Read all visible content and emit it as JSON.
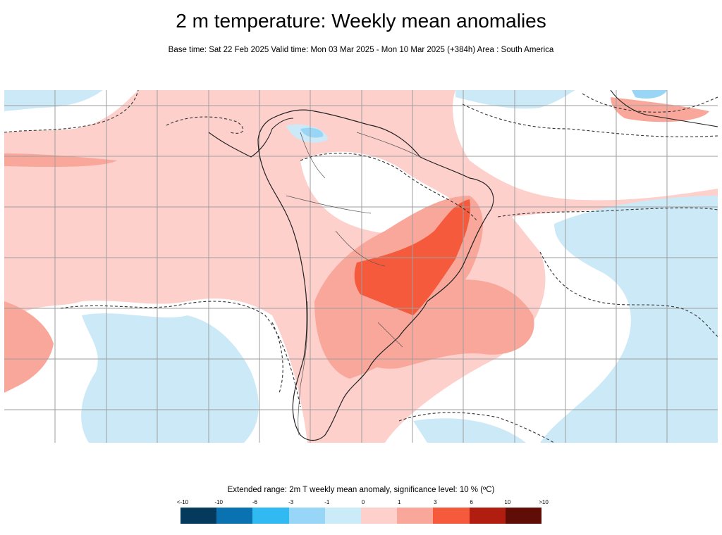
{
  "header": {
    "title": "2 m temperature: Weekly mean anomalies",
    "subtitle": "Base time: Sat 22 Feb 2025 Valid time: Mon 03 Mar 2025 - Mon 10 Mar 2025 (+384h) Area : South America"
  },
  "map": {
    "area": "South America",
    "colors": {
      "ocean_light_pink": "#fdd0cc",
      "pink_medium": "#f9a79a",
      "red_strong": "#f55a3c",
      "light_blue": "#cce9f8",
      "blue_medium": "#99d6f6",
      "coast": "#222222",
      "grid": "#9e9e9e",
      "significance_contour": "#333333"
    }
  },
  "legend": {
    "title": "Extended range: 2m T weekly mean anomaly, significance level: 10 % (ºC)",
    "ticks": [
      "<-10",
      "-10",
      "-6",
      "-3",
      "-1",
      "0",
      "1",
      "3",
      "6",
      "10",
      ">10"
    ],
    "colors": [
      "#053a5c",
      "#0a72b0",
      "#31baf2",
      "#98d6f8",
      "#ccebf9",
      "#fdd0cc",
      "#f9a79a",
      "#f55a3c",
      "#b11d0e",
      "#5f0d06"
    ]
  }
}
